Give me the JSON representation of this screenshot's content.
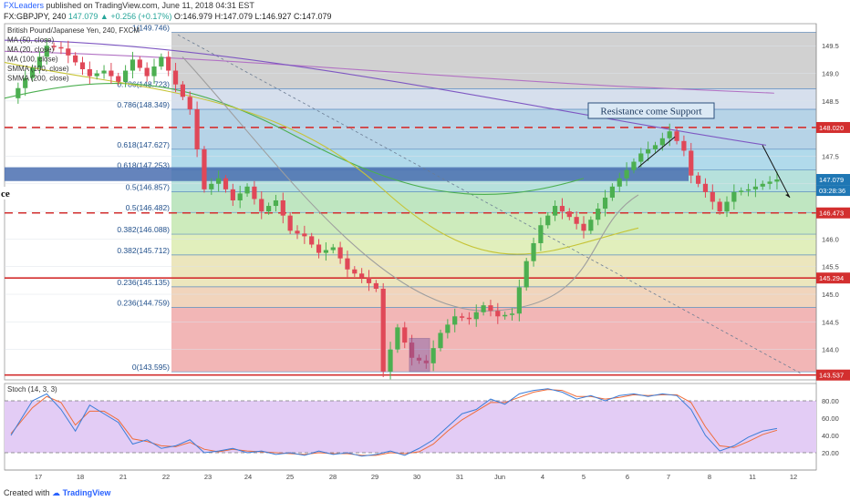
{
  "header": {
    "publisher": "FXLeaders",
    "published_text": "published on TradingView.com, June 11, 2018 04:31 EST",
    "symbol": "FX:GBPJPY, 240",
    "change": "147.079 ▲ +0.256 (+0.17%)",
    "ohlc": "O:146.979 H:147.079 L:146.927 C:147.079"
  },
  "footer": {
    "created_with": "Created with",
    "brand": "TradingView"
  },
  "legend": [
    "British Pound/Japanese Yen, 240, FXCM",
    "MA (50, close)",
    "MA (20, close)",
    "MA (100, close)",
    "SMMA (100, close)",
    "SMMA (200, close)"
  ],
  "annotation": "Resistance come Support",
  "edge_fragment": "ce",
  "colors": {
    "up": "#4caf50",
    "down": "#e04858",
    "resistance": "#d32f2f"
  },
  "chart_data": {
    "type": "candlestick",
    "title": "British Pound/Japanese Yen, 240, FXCM",
    "ylim": [
      143.45,
      149.9
    ],
    "y_ticks": [
      144.0,
      144.5,
      145.0,
      145.5,
      146.0,
      146.5,
      147.0,
      147.5,
      148.0,
      148.5,
      149.0,
      149.5
    ],
    "x_ticks": [
      "17",
      "18",
      "21",
      "22",
      "23",
      "24",
      "25",
      "28",
      "29",
      "30",
      "31",
      "Jun",
      "4",
      "5",
      "6",
      "7",
      "8",
      "11",
      "12"
    ],
    "price_labels": [
      {
        "value": 147.079,
        "text": "147.079",
        "color": "#1f77b4"
      },
      {
        "value": 146.88,
        "text": "03:28:36",
        "color": "#1f77b4"
      },
      {
        "value": 148.02,
        "text": "148.020",
        "color": "#d32f2f"
      },
      {
        "value": 146.473,
        "text": "146.473",
        "color": "#d32f2f"
      },
      {
        "value": 145.294,
        "text": "145.294",
        "color": "#d32f2f"
      },
      {
        "value": 143.537,
        "text": "143.537",
        "color": "#d32f2f"
      }
    ],
    "resistance_lines": [
      148.02,
      146.473
    ],
    "red_lines": [
      145.294,
      143.537
    ],
    "fibonacci": [
      {
        "level": "1(149.746)",
        "value": 149.746
      },
      {
        "level": "0.786(148.723)",
        "value": 148.723
      },
      {
        "level": "0.786(148.349)",
        "value": 148.349
      },
      {
        "level": "0.618(147.627)",
        "value": 147.627
      },
      {
        "level": "0.618(147.253)",
        "value": 147.253
      },
      {
        "level": "0.5(146.857)",
        "value": 146.857
      },
      {
        "level": "0.5(146.482)",
        "value": 146.482
      },
      {
        "level": "0.382(146.088)",
        "value": 146.088
      },
      {
        "level": "0.382(145.712)",
        "value": 145.712
      },
      {
        "level": "0.236(145.135)",
        "value": 145.135
      },
      {
        "level": "0.236(144.759)",
        "value": 144.759
      },
      {
        "level": "0(143.595)",
        "value": 143.595
      }
    ],
    "close_path": [
      [
        0,
        148.55
      ],
      [
        3,
        149.1
      ],
      [
        5,
        149.5
      ],
      [
        7,
        149.45
      ],
      [
        9,
        149.2
      ],
      [
        11,
        148.95
      ],
      [
        13,
        149.05
      ],
      [
        15,
        148.85
      ],
      [
        17,
        149.25
      ],
      [
        19,
        148.95
      ],
      [
        21,
        149.3
      ],
      [
        23,
        148.8
      ],
      [
        25,
        148.35
      ],
      [
        27,
        146.9
      ],
      [
        29,
        147.1
      ],
      [
        31,
        146.7
      ],
      [
        33,
        146.95
      ],
      [
        35,
        146.5
      ],
      [
        37,
        146.7
      ],
      [
        39,
        146.15
      ],
      [
        41,
        146.05
      ],
      [
        43,
        145.75
      ],
      [
        45,
        145.85
      ],
      [
        47,
        145.45
      ],
      [
        49,
        145.3
      ],
      [
        51,
        145.1
      ],
      [
        52,
        143.6
      ],
      [
        54,
        144.4
      ],
      [
        56,
        143.85
      ],
      [
        58,
        143.75
      ],
      [
        60,
        144.3
      ],
      [
        62,
        144.6
      ],
      [
        64,
        144.55
      ],
      [
        66,
        144.8
      ],
      [
        68,
        144.6
      ],
      [
        70,
        144.65
      ],
      [
        72,
        145.6
      ],
      [
        74,
        146.25
      ],
      [
        76,
        146.6
      ],
      [
        78,
        146.4
      ],
      [
        80,
        146.15
      ],
      [
        82,
        146.55
      ],
      [
        84,
        146.95
      ],
      [
        86,
        147.25
      ],
      [
        88,
        147.55
      ],
      [
        90,
        147.7
      ],
      [
        92,
        147.95
      ],
      [
        94,
        147.6
      ],
      [
        95,
        147.15
      ],
      [
        97,
        146.85
      ],
      [
        99,
        146.5
      ],
      [
        101,
        146.85
      ],
      [
        103,
        146.9
      ],
      [
        105,
        147.0
      ],
      [
        107,
        147.079
      ]
    ],
    "oscillator": {
      "title": "Stoch (14, 3, 3)",
      "ylim": [
        0,
        100
      ],
      "y_ticks": [
        20.0,
        40.0,
        60.0,
        80.0
      ],
      "bands": [
        20,
        80
      ],
      "k": [
        [
          0,
          40
        ],
        [
          3,
          80
        ],
        [
          5,
          88
        ],
        [
          7,
          70
        ],
        [
          9,
          45
        ],
        [
          11,
          75
        ],
        [
          13,
          65
        ],
        [
          15,
          55
        ],
        [
          17,
          30
        ],
        [
          19,
          35
        ],
        [
          21,
          25
        ],
        [
          23,
          28
        ],
        [
          25,
          35
        ],
        [
          27,
          20
        ],
        [
          29,
          22
        ],
        [
          31,
          25
        ],
        [
          33,
          20
        ],
        [
          35,
          22
        ],
        [
          37,
          18
        ],
        [
          39,
          20
        ],
        [
          41,
          17
        ],
        [
          43,
          22
        ],
        [
          45,
          18
        ],
        [
          47,
          20
        ],
        [
          49,
          16
        ],
        [
          51,
          18
        ],
        [
          53,
          22
        ],
        [
          55,
          17
        ],
        [
          57,
          25
        ],
        [
          59,
          35
        ],
        [
          61,
          50
        ],
        [
          63,
          65
        ],
        [
          65,
          70
        ],
        [
          67,
          82
        ],
        [
          69,
          76
        ],
        [
          71,
          88
        ],
        [
          73,
          92
        ],
        [
          75,
          94
        ],
        [
          77,
          90
        ],
        [
          79,
          82
        ],
        [
          81,
          86
        ],
        [
          83,
          80
        ],
        [
          85,
          86
        ],
        [
          87,
          88
        ],
        [
          89,
          85
        ],
        [
          91,
          88
        ],
        [
          93,
          86
        ],
        [
          95,
          70
        ],
        [
          97,
          40
        ],
        [
          99,
          22
        ],
        [
          101,
          28
        ],
        [
          103,
          38
        ],
        [
          105,
          45
        ],
        [
          107,
          48
        ]
      ],
      "d": [
        [
          0,
          42
        ],
        [
          3,
          72
        ],
        [
          5,
          85
        ],
        [
          7,
          78
        ],
        [
          9,
          52
        ],
        [
          11,
          68
        ],
        [
          13,
          68
        ],
        [
          15,
          58
        ],
        [
          17,
          36
        ],
        [
          19,
          33
        ],
        [
          21,
          28
        ],
        [
          23,
          27
        ],
        [
          25,
          32
        ],
        [
          27,
          24
        ],
        [
          29,
          21
        ],
        [
          31,
          24
        ],
        [
          33,
          22
        ],
        [
          35,
          21
        ],
        [
          37,
          20
        ],
        [
          39,
          19
        ],
        [
          41,
          18
        ],
        [
          43,
          20
        ],
        [
          45,
          19
        ],
        [
          47,
          19
        ],
        [
          49,
          17
        ],
        [
          51,
          17
        ],
        [
          53,
          20
        ],
        [
          55,
          19
        ],
        [
          57,
          21
        ],
        [
          59,
          30
        ],
        [
          61,
          45
        ],
        [
          63,
          58
        ],
        [
          65,
          68
        ],
        [
          67,
          78
        ],
        [
          69,
          78
        ],
        [
          71,
          84
        ],
        [
          73,
          90
        ],
        [
          75,
          93
        ],
        [
          77,
          92
        ],
        [
          79,
          85
        ],
        [
          81,
          85
        ],
        [
          83,
          82
        ],
        [
          85,
          84
        ],
        [
          87,
          87
        ],
        [
          89,
          86
        ],
        [
          91,
          87
        ],
        [
          93,
          87
        ],
        [
          95,
          78
        ],
        [
          97,
          50
        ],
        [
          99,
          28
        ],
        [
          101,
          26
        ],
        [
          103,
          33
        ],
        [
          105,
          41
        ],
        [
          107,
          46
        ]
      ]
    }
  }
}
